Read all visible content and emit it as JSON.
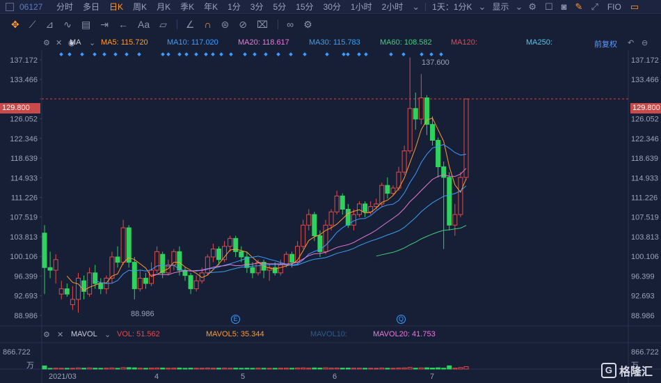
{
  "topbar": {
    "code": "06127",
    "tabs": [
      "分时",
      "多日",
      "日K",
      "周K",
      "月K",
      "季K",
      "年K",
      "1分",
      "3分",
      "5分",
      "15分",
      "30分",
      "1小时",
      "2小时"
    ],
    "active_tab": "日K",
    "period_select": "1天：1分K",
    "display_menu": "显示",
    "fio_label": "FIO"
  },
  "ma": {
    "label": "MA",
    "ma5": "MA5: 115.720",
    "ma10": "MA10: 117.020",
    "ma20": "MA20: 118.617",
    "ma30": "MA30: 115.783",
    "ma60": "MA60: 108.582",
    "ma120": "MA120:",
    "ma250": "MA250:",
    "restore": "前复权",
    "colors": {
      "ma5": "#ff9b2e",
      "ma10": "#3d9cff",
      "ma20": "#e87ad8",
      "ma30": "#3ba0f0",
      "ma60": "#3fcf7a",
      "ma120": "#e24b4b",
      "ma250": "#4fc8e8"
    }
  },
  "axis": {
    "ticks": [
      "137.172",
      "133.466",
      "129.800",
      "126.052",
      "122.346",
      "118.639",
      "114.933",
      "111.226",
      "107.519",
      "103.813",
      "100.106",
      "96.399",
      "92.693",
      "88.986"
    ],
    "current_price": "129.800",
    "high_label": "137.600",
    "low_label": "88.986"
  },
  "volume": {
    "label": "MAVOL",
    "vol": "VOL: 51.562",
    "mavol5": "MAVOL5: 35.344",
    "mavol10": "MAVOL10:",
    "mavol20": "MAVOL20: 41.753",
    "axis_top": "866.722",
    "unit": "万"
  },
  "x_axis": [
    "2021/03",
    "4",
    "5",
    "6",
    "7"
  ],
  "markers": {
    "e": "E",
    "q": "Q"
  },
  "brand": "格隆汇",
  "chart_data": {
    "type": "candlestick",
    "ylim": [
      87.0,
      139.0
    ],
    "months": [
      "2021/03",
      "4",
      "5",
      "6",
      "7"
    ],
    "candles": [
      [
        104.5,
        98.0,
        106.0,
        93.0
      ],
      [
        98.0,
        97.5,
        101.0,
        96.0
      ],
      [
        97.5,
        99.5,
        100.5,
        95.0
      ],
      [
        93.0,
        94.0,
        95.5,
        92.0
      ],
      [
        94.0,
        93.0,
        95.0,
        92.5
      ],
      [
        91.0,
        92.0,
        94.5,
        90.0
      ],
      [
        92.0,
        96.0,
        97.0,
        89.5
      ],
      [
        95.5,
        93.5,
        96.5,
        92.0
      ],
      [
        93.0,
        97.0,
        98.0,
        92.5
      ],
      [
        97.0,
        95.0,
        98.5,
        94.0
      ],
      [
        95.0,
        94.0,
        96.0,
        93.0
      ],
      [
        94.0,
        96.0,
        96.5,
        93.0
      ],
      [
        96.0,
        100.0,
        101.0,
        95.0
      ],
      [
        100.0,
        99.0,
        102.0,
        98.0
      ],
      [
        99.0,
        105.5,
        107.0,
        98.5
      ],
      [
        105.5,
        99.0,
        106.0,
        98.0
      ],
      [
        99.0,
        94.0,
        100.0,
        92.0
      ],
      [
        94.0,
        96.0,
        97.5,
        93.5
      ],
      [
        96.0,
        95.0,
        97.0,
        94.0
      ],
      [
        95.0,
        97.5,
        99.0,
        94.5
      ],
      [
        97.5,
        101.0,
        102.0,
        97.0
      ],
      [
        100.5,
        97.0,
        101.0,
        96.0
      ],
      [
        97.0,
        98.5,
        99.5,
        96.5
      ],
      [
        98.5,
        101.0,
        101.5,
        97.5
      ],
      [
        101.0,
        97.5,
        102.0,
        96.5
      ],
      [
        97.5,
        96.5,
        98.0,
        95.5
      ],
      [
        96.5,
        94.0,
        97.0,
        93.0
      ],
      [
        94.0,
        95.5,
        96.5,
        93.5
      ],
      [
        95.5,
        97.0,
        98.0,
        95.0
      ],
      [
        97.0,
        100.0,
        100.5,
        96.5
      ],
      [
        100.0,
        101.5,
        102.5,
        99.0
      ],
      [
        101.5,
        99.5,
        102.0,
        98.5
      ],
      [
        99.5,
        102.0,
        103.0,
        99.0
      ],
      [
        102.0,
        103.5,
        104.0,
        101.0
      ],
      [
        103.5,
        101.0,
        104.0,
        100.0
      ],
      [
        101.0,
        100.0,
        102.0,
        99.0
      ],
      [
        100.0,
        98.0,
        101.0,
        97.0
      ],
      [
        98.0,
        97.0,
        99.0,
        96.0
      ],
      [
        97.0,
        99.0,
        99.5,
        96.5
      ],
      [
        99.0,
        97.5,
        99.5,
        96.0
      ],
      [
        97.5,
        98.0,
        98.5,
        95.5
      ],
      [
        98.0,
        97.0,
        99.0,
        96.5
      ],
      [
        97.0,
        98.5,
        99.5,
        96.5
      ],
      [
        98.5,
        100.5,
        101.0,
        98.0
      ],
      [
        100.5,
        99.0,
        101.0,
        98.0
      ],
      [
        99.0,
        102.0,
        103.0,
        98.5
      ],
      [
        102.0,
        106.0,
        107.0,
        101.5
      ],
      [
        106.0,
        108.0,
        109.0,
        105.0
      ],
      [
        108.0,
        104.0,
        108.5,
        103.0
      ],
      [
        104.0,
        101.0,
        105.0,
        100.0
      ],
      [
        101.0,
        106.0,
        107.0,
        100.5
      ],
      [
        106.0,
        108.5,
        109.0,
        105.0
      ],
      [
        108.5,
        111.5,
        112.5,
        108.0
      ],
      [
        111.5,
        109.0,
        112.0,
        108.0
      ],
      [
        109.0,
        106.0,
        110.0,
        105.5
      ],
      [
        106.0,
        108.0,
        109.0,
        105.0
      ],
      [
        108.0,
        110.0,
        110.5,
        107.5
      ],
      [
        110.0,
        108.5,
        110.5,
        107.5
      ],
      [
        108.5,
        109.5,
        110.5,
        108.0
      ],
      [
        109.5,
        110.0,
        111.0,
        109.0
      ],
      [
        110.0,
        113.5,
        114.0,
        109.5
      ],
      [
        113.5,
        112.0,
        115.0,
        111.0
      ],
      [
        112.0,
        113.0,
        113.5,
        111.5
      ],
      [
        113.0,
        116.0,
        117.0,
        112.5
      ],
      [
        116.0,
        120.0,
        121.0,
        115.5
      ],
      [
        120.0,
        128.0,
        137.6,
        119.5
      ],
      [
        128.0,
        126.0,
        131.0,
        124.0
      ],
      [
        126.0,
        130.0,
        134.5,
        125.0
      ],
      [
        130.0,
        125.0,
        130.5,
        123.0
      ],
      [
        125.0,
        122.0,
        126.5,
        121.0
      ],
      [
        122.0,
        117.0,
        122.5,
        115.0
      ],
      [
        117.0,
        115.0,
        118.0,
        101.5
      ],
      [
        115.0,
        106.0,
        116.0,
        105.0
      ],
      [
        106.0,
        108.0,
        110.0,
        104.0
      ],
      [
        108.0,
        115.0,
        116.0,
        107.5
      ],
      [
        115.0,
        129.8,
        129.8,
        114.5
      ]
    ],
    "series": [
      {
        "name": "MA5",
        "values": []
      },
      {
        "name": "MA10",
        "values": []
      },
      {
        "name": "MA20",
        "values": []
      },
      {
        "name": "MA30",
        "values": []
      },
      {
        "name": "MA60",
        "values": []
      }
    ],
    "volume_max": 866.722
  }
}
